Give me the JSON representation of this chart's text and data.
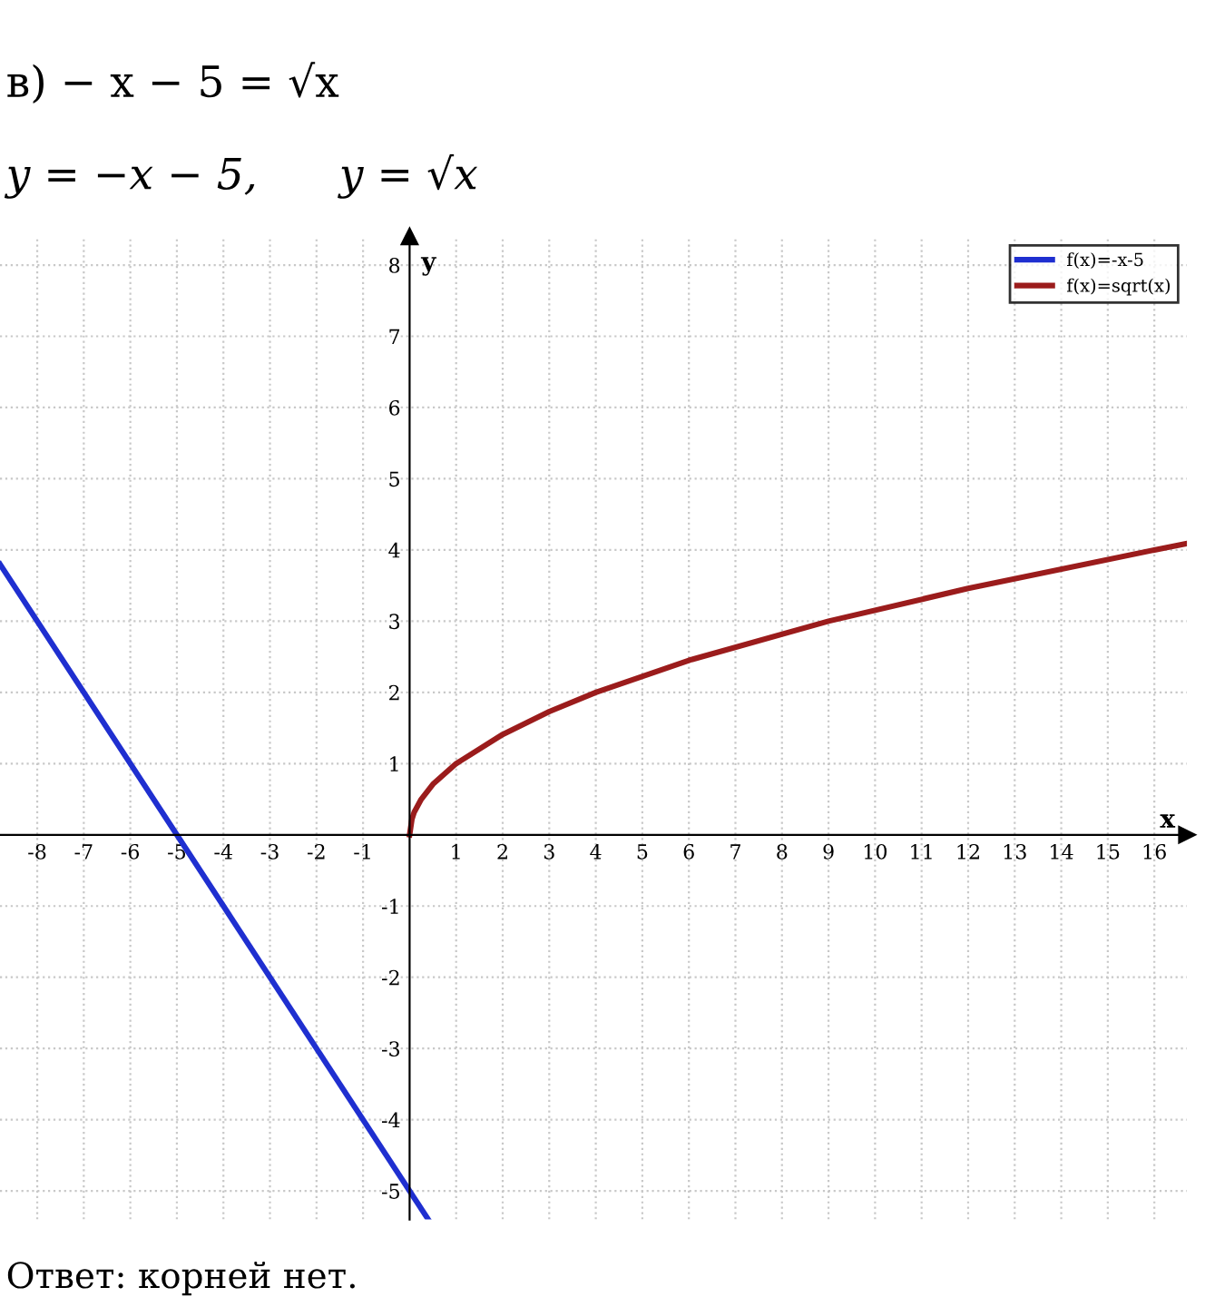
{
  "chart_data": {
    "type": "line",
    "title": "в) − x − 5 = √x",
    "subtitle": "y = −x − 5,      y = √x",
    "xlabel": "x",
    "ylabel": "y",
    "annotations": [
      "Ответ: корней нет."
    ],
    "series": [
      {
        "name": "f(x)=-x-5",
        "color": "#1f2fd0",
        "x": [
          -8.8,
          0.4
        ],
        "values": [
          3.8,
          -5.4
        ]
      },
      {
        "name": "f(x)=sqrt(x)",
        "color": "#9b1c1c",
        "x": [
          0,
          0.05,
          0.1,
          0.25,
          0.5,
          1,
          2,
          3,
          4,
          6,
          9,
          12,
          16,
          16.7
        ],
        "values": [
          0,
          0.22,
          0.32,
          0.5,
          0.71,
          1,
          1.41,
          1.73,
          2,
          2.45,
          3,
          3.46,
          4,
          4.09
        ]
      }
    ],
    "xlim": [
      -8.8,
      16.7
    ],
    "ylim": [
      -5.4,
      8.4
    ],
    "xticks": [
      -8,
      -7,
      -6,
      -5,
      -4,
      -3,
      -2,
      -1,
      1,
      2,
      3,
      4,
      5,
      6,
      7,
      8,
      9,
      10,
      11,
      12,
      13,
      14,
      15,
      16
    ],
    "yticks": [
      -5,
      -4,
      -3,
      -2,
      -1,
      1,
      2,
      3,
      4,
      5,
      6,
      7,
      8
    ],
    "grid": true,
    "legend": "top right",
    "line_style": "solid",
    "marker": "none"
  }
}
